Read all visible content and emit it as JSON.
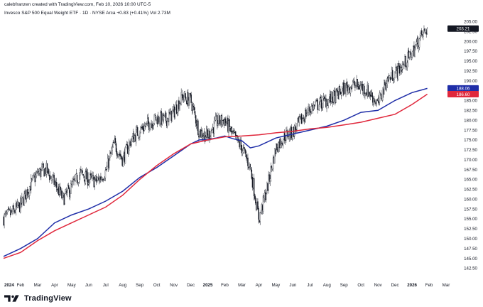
{
  "credit": "calebfranzen created with TradingView.com, Feb 10, 2026 10:00 UTC-5",
  "legend": "Invesco S&P 500 Equal Weight ETF · 1D · NYSE Arca  +0.83 (+0.41%)  Vol 2.73M",
  "brand": "TradingView",
  "colors": {
    "background": "#ffffff",
    "candles": "#131722",
    "sma_short": "#1f2ea8",
    "sma_long": "#e0283c",
    "last_price_tag": "#131722"
  },
  "chart_data": {
    "type": "candlestick",
    "y_axis_side": "right",
    "ylim": [
      141.5,
      206.5
    ],
    "y_ticks": [
      "205.00",
      "202.50",
      "200.00",
      "197.50",
      "195.00",
      "192.50",
      "190.00",
      "187.50",
      "185.00",
      "182.50",
      "180.00",
      "177.50",
      "175.00",
      "172.50",
      "170.00",
      "167.50",
      "165.00",
      "162.50",
      "160.00",
      "157.50",
      "155.00",
      "152.50",
      "150.00",
      "147.50",
      "145.00",
      "142.50"
    ],
    "x_ticks": [
      "2024",
      "Feb",
      "Mar",
      "Apr",
      "May",
      "Jun",
      "Jul",
      "Aug",
      "Sep",
      "Oct",
      "Nov",
      "Dec",
      "2025",
      "Feb",
      "Mar",
      "Apr",
      "May",
      "Jun",
      "Jul",
      "Aug",
      "Sep",
      "Oct",
      "Nov",
      "Dec",
      "2026",
      "Feb",
      "Mar"
    ],
    "x_tick_months_since_start": [
      0,
      1,
      2,
      3,
      4,
      5,
      6,
      7,
      8,
      9,
      10,
      11,
      12,
      13,
      14,
      15,
      16,
      17,
      18,
      19,
      20,
      21,
      22,
      23,
      24,
      25,
      26
    ],
    "last_price": "203.21",
    "series": [
      {
        "values": [
          [
            0,
            155.2
          ],
          [
            0.5,
            156.5
          ],
          [
            1,
            158.5
          ],
          [
            1.5,
            163
          ],
          [
            2,
            166.5
          ],
          [
            2.5,
            167.5
          ],
          [
            3,
            164
          ],
          [
            3.5,
            160
          ],
          [
            4,
            163
          ],
          [
            4.5,
            166.5
          ],
          [
            5,
            165
          ],
          [
            5.5,
            164.5
          ],
          [
            6,
            167
          ],
          [
            6.5,
            174
          ],
          [
            7,
            170
          ],
          [
            7.5,
            175
          ],
          [
            8,
            177.5
          ],
          [
            8.5,
            179
          ],
          [
            9,
            180.5
          ],
          [
            9.5,
            180
          ],
          [
            10,
            182
          ],
          [
            10.5,
            186
          ],
          [
            11,
            185
          ],
          [
            11.5,
            177
          ],
          [
            12,
            176
          ],
          [
            12.5,
            179.5
          ],
          [
            13,
            180
          ],
          [
            13.5,
            176
          ],
          [
            14,
            173
          ],
          [
            14.5,
            168
          ],
          [
            15,
            155
          ],
          [
            15.5,
            163
          ],
          [
            16,
            173
          ],
          [
            16.5,
            176
          ],
          [
            17,
            177
          ],
          [
            17.5,
            180
          ],
          [
            18,
            183
          ],
          [
            18.5,
            184
          ],
          [
            19,
            185
          ],
          [
            19.5,
            186
          ],
          [
            20,
            188
          ],
          [
            20.5,
            189
          ],
          [
            21,
            188.5
          ],
          [
            21.5,
            187
          ],
          [
            22,
            184
          ],
          [
            22.5,
            190
          ],
          [
            23,
            192
          ],
          [
            23.5,
            194
          ],
          [
            24,
            197
          ],
          [
            24.5,
            201
          ],
          [
            24.9,
            203.21
          ]
        ]
      },
      {
        "name": "188.06",
        "values": [
          [
            0,
            145.5
          ],
          [
            1,
            147.5
          ],
          [
            2,
            150
          ],
          [
            3,
            154
          ],
          [
            4,
            156
          ],
          [
            5,
            157.5
          ],
          [
            6,
            159.5
          ],
          [
            7,
            162
          ],
          [
            8,
            165.5
          ],
          [
            9,
            168
          ],
          [
            10,
            171
          ],
          [
            11,
            174
          ],
          [
            11.5,
            175
          ],
          [
            12,
            175.1
          ],
          [
            12.5,
            175.5
          ],
          [
            13,
            176
          ],
          [
            13.5,
            175.3
          ],
          [
            14,
            174.8
          ],
          [
            14.5,
            173
          ],
          [
            15,
            173.5
          ],
          [
            16,
            175.5
          ],
          [
            17,
            176.5
          ],
          [
            18,
            177.5
          ],
          [
            19,
            178.5
          ],
          [
            20,
            180
          ],
          [
            21,
            182
          ],
          [
            22,
            182.5
          ],
          [
            23,
            185
          ],
          [
            24,
            187
          ],
          [
            24.9,
            188.06
          ]
        ]
      },
      {
        "name": "186.60",
        "values": [
          [
            0,
            145
          ],
          [
            1,
            146.5
          ],
          [
            2,
            149.5
          ],
          [
            3,
            152
          ],
          [
            4,
            154
          ],
          [
            5,
            156
          ],
          [
            6,
            158
          ],
          [
            7,
            161
          ],
          [
            8,
            165
          ],
          [
            9,
            168.5
          ],
          [
            10,
            171.5
          ],
          [
            11,
            174
          ],
          [
            12,
            175
          ],
          [
            13,
            175.8
          ],
          [
            14,
            176
          ],
          [
            15,
            176.3
          ],
          [
            16,
            176.8
          ],
          [
            17,
            177.2
          ],
          [
            18,
            177.8
          ],
          [
            19,
            178.2
          ],
          [
            20,
            178.8
          ],
          [
            21,
            179.5
          ],
          [
            22,
            180.5
          ],
          [
            23,
            181.5
          ],
          [
            24,
            184
          ],
          [
            24.9,
            186.6
          ]
        ]
      }
    ]
  }
}
